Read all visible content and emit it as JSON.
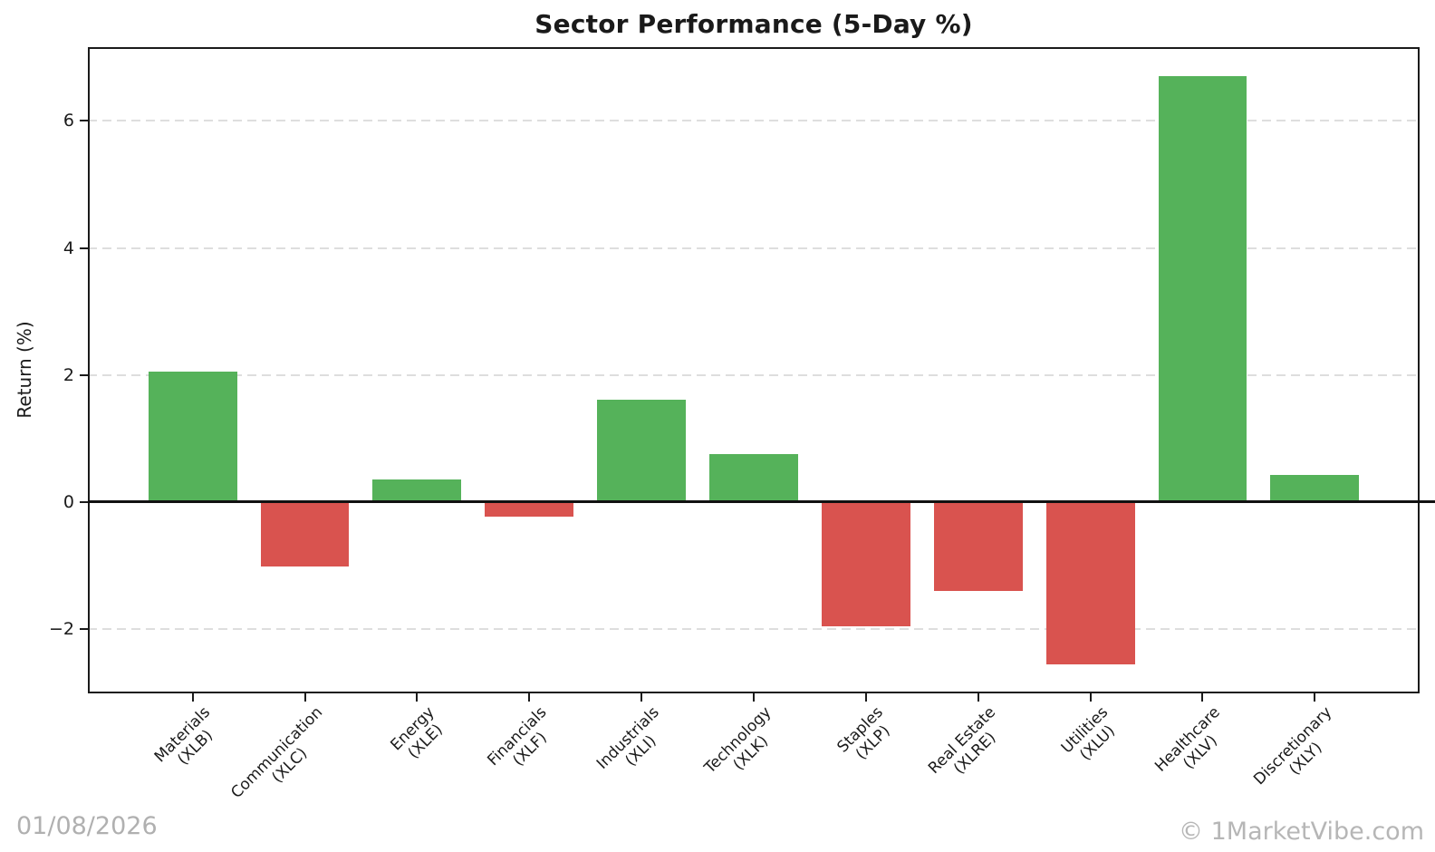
{
  "figure": {
    "footer_date": "01/08/2026",
    "watermark": "© 1MarketVibe.com"
  },
  "chart_data": {
    "type": "bar",
    "title": "Sector Performance (5-Day %)",
    "xlabel": "",
    "ylabel": "Return (%)",
    "categories": [
      {
        "sector": "Materials",
        "ticker": "(XLB)"
      },
      {
        "sector": "Communication",
        "ticker": "(XLC)"
      },
      {
        "sector": "Energy",
        "ticker": "(XLE)"
      },
      {
        "sector": "Financials",
        "ticker": "(XLF)"
      },
      {
        "sector": "Industrials",
        "ticker": "(XLI)"
      },
      {
        "sector": "Technology",
        "ticker": "(XLK)"
      },
      {
        "sector": "Staples",
        "ticker": "(XLP)"
      },
      {
        "sector": "Real Estate",
        "ticker": "(XLRE)"
      },
      {
        "sector": "Utilities",
        "ticker": "(XLU)"
      },
      {
        "sector": "Healthcare",
        "ticker": "(XLV)"
      },
      {
        "sector": "Discretionary",
        "ticker": "(XLY)"
      }
    ],
    "values": [
      2.06,
      -1.02,
      0.36,
      -0.23,
      1.61,
      0.76,
      -1.95,
      -1.4,
      -2.56,
      6.71,
      0.43
    ],
    "yticks": [
      -2,
      0,
      2,
      4,
      6
    ],
    "ylim": [
      -3.01,
      7.16
    ],
    "grid": {
      "axis": "y",
      "style": "dashed",
      "color": "#dedede"
    },
    "colors": {
      "positive": "#55b25a",
      "negative": "#d9534f"
    },
    "zero_line": true,
    "legend": null
  }
}
